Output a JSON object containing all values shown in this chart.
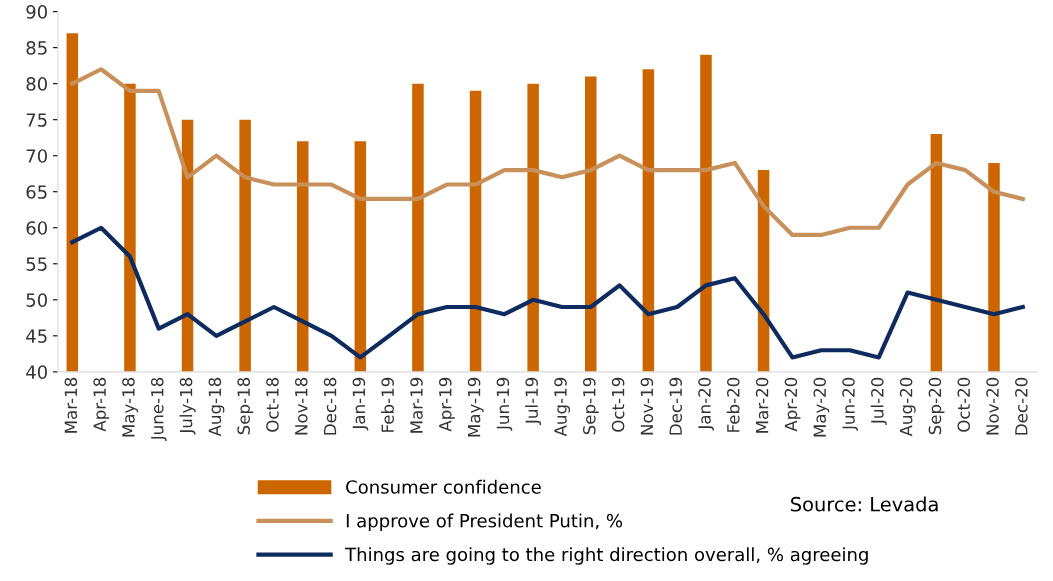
{
  "chart_data": {
    "type": "bar",
    "categories": [
      "Mar-18",
      "Apr-18",
      "May-18",
      "June-18",
      "July-18",
      "Aug-18",
      "Sep-18",
      "Oct-18",
      "Nov-18",
      "Dec-18",
      "Jan-19",
      "Feb-19",
      "Mar-19",
      "Apr-19",
      "May-19",
      "Jun-19",
      "Jul-19",
      "Aug-19",
      "Sep-19",
      "Oct-19",
      "Nov-19",
      "Dec-19",
      "Jan-20",
      "Feb-20",
      "Mar-20",
      "Apr-20",
      "May-20",
      "Jun-20",
      "Jul-20",
      "Aug-20",
      "Sep-20",
      "Oct-20",
      "Nov-20",
      "Dec-20"
    ],
    "series": [
      {
        "name": "Consumer confidence",
        "color": "#cc6600",
        "values": [
          87,
          null,
          80,
          null,
          75,
          null,
          75,
          null,
          72,
          null,
          72,
          null,
          80,
          null,
          79,
          null,
          80,
          null,
          81,
          null,
          82,
          null,
          84,
          null,
          68,
          null,
          null,
          null,
          null,
          null,
          73,
          null,
          69,
          null
        ]
      },
      {
        "name": "I approve of President Putin, %",
        "type": "line",
        "color": "#c8905a",
        "values": [
          80,
          82,
          79,
          79,
          67,
          70,
          67,
          66,
          66,
          66,
          64,
          64,
          64,
          66,
          66,
          68,
          68,
          67,
          68,
          70,
          68,
          68,
          68,
          69,
          63,
          59,
          59,
          60,
          60,
          66,
          69,
          68,
          65,
          64
        ]
      },
      {
        "name": "Things are going to the right direction overall, % agreeing",
        "type": "line",
        "color": "#0d2b5e",
        "values": [
          58,
          60,
          56,
          46,
          48,
          45,
          47,
          49,
          47,
          45,
          42,
          45,
          48,
          49,
          49,
          48,
          50,
          49,
          49,
          52,
          48,
          49,
          52,
          53,
          48,
          42,
          43,
          43,
          42,
          51,
          50,
          49,
          48,
          49
        ]
      }
    ],
    "ylim": [
      40,
      90
    ],
    "yticks": [
      40,
      45,
      50,
      55,
      60,
      65,
      70,
      75,
      80,
      85,
      90
    ],
    "grid": false,
    "legend": "bottom",
    "marker": "none",
    "line_style": "solid",
    "annotations": [
      "Source: Levada"
    ]
  }
}
